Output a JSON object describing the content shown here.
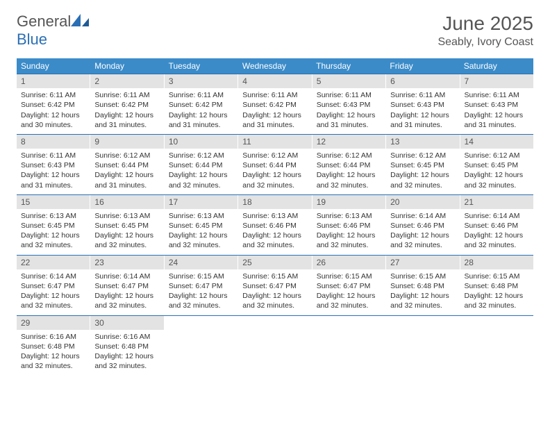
{
  "logo": {
    "text1": "General",
    "text2": "Blue"
  },
  "header": {
    "title": "June 2025",
    "location": "Seably, Ivory Coast"
  },
  "colors": {
    "header_bg": "#3b8bc9",
    "header_text": "#ffffff",
    "rule": "#2a6fb5",
    "daynum_bg": "#e3e3e3",
    "text": "#333333",
    "logo_blue": "#2a6fb5"
  },
  "typography": {
    "month_title_fontsize": 28,
    "location_fontsize": 16,
    "dow_fontsize": 12,
    "cell_fontsize": 10.5
  },
  "calendar": {
    "days_of_week": [
      "Sunday",
      "Monday",
      "Tuesday",
      "Wednesday",
      "Thursday",
      "Friday",
      "Saturday"
    ],
    "first_weekday_index": 0,
    "num_days": 30,
    "weeks": [
      [
        {
          "n": "1",
          "sunrise": "Sunrise: 6:11 AM",
          "sunset": "Sunset: 6:42 PM",
          "d1": "Daylight: 12 hours",
          "d2": "and 30 minutes."
        },
        {
          "n": "2",
          "sunrise": "Sunrise: 6:11 AM",
          "sunset": "Sunset: 6:42 PM",
          "d1": "Daylight: 12 hours",
          "d2": "and 31 minutes."
        },
        {
          "n": "3",
          "sunrise": "Sunrise: 6:11 AM",
          "sunset": "Sunset: 6:42 PM",
          "d1": "Daylight: 12 hours",
          "d2": "and 31 minutes."
        },
        {
          "n": "4",
          "sunrise": "Sunrise: 6:11 AM",
          "sunset": "Sunset: 6:42 PM",
          "d1": "Daylight: 12 hours",
          "d2": "and 31 minutes."
        },
        {
          "n": "5",
          "sunrise": "Sunrise: 6:11 AM",
          "sunset": "Sunset: 6:43 PM",
          "d1": "Daylight: 12 hours",
          "d2": "and 31 minutes."
        },
        {
          "n": "6",
          "sunrise": "Sunrise: 6:11 AM",
          "sunset": "Sunset: 6:43 PM",
          "d1": "Daylight: 12 hours",
          "d2": "and 31 minutes."
        },
        {
          "n": "7",
          "sunrise": "Sunrise: 6:11 AM",
          "sunset": "Sunset: 6:43 PM",
          "d1": "Daylight: 12 hours",
          "d2": "and 31 minutes."
        }
      ],
      [
        {
          "n": "8",
          "sunrise": "Sunrise: 6:11 AM",
          "sunset": "Sunset: 6:43 PM",
          "d1": "Daylight: 12 hours",
          "d2": "and 31 minutes."
        },
        {
          "n": "9",
          "sunrise": "Sunrise: 6:12 AM",
          "sunset": "Sunset: 6:44 PM",
          "d1": "Daylight: 12 hours",
          "d2": "and 31 minutes."
        },
        {
          "n": "10",
          "sunrise": "Sunrise: 6:12 AM",
          "sunset": "Sunset: 6:44 PM",
          "d1": "Daylight: 12 hours",
          "d2": "and 32 minutes."
        },
        {
          "n": "11",
          "sunrise": "Sunrise: 6:12 AM",
          "sunset": "Sunset: 6:44 PM",
          "d1": "Daylight: 12 hours",
          "d2": "and 32 minutes."
        },
        {
          "n": "12",
          "sunrise": "Sunrise: 6:12 AM",
          "sunset": "Sunset: 6:44 PM",
          "d1": "Daylight: 12 hours",
          "d2": "and 32 minutes."
        },
        {
          "n": "13",
          "sunrise": "Sunrise: 6:12 AM",
          "sunset": "Sunset: 6:45 PM",
          "d1": "Daylight: 12 hours",
          "d2": "and 32 minutes."
        },
        {
          "n": "14",
          "sunrise": "Sunrise: 6:12 AM",
          "sunset": "Sunset: 6:45 PM",
          "d1": "Daylight: 12 hours",
          "d2": "and 32 minutes."
        }
      ],
      [
        {
          "n": "15",
          "sunrise": "Sunrise: 6:13 AM",
          "sunset": "Sunset: 6:45 PM",
          "d1": "Daylight: 12 hours",
          "d2": "and 32 minutes."
        },
        {
          "n": "16",
          "sunrise": "Sunrise: 6:13 AM",
          "sunset": "Sunset: 6:45 PM",
          "d1": "Daylight: 12 hours",
          "d2": "and 32 minutes."
        },
        {
          "n": "17",
          "sunrise": "Sunrise: 6:13 AM",
          "sunset": "Sunset: 6:45 PM",
          "d1": "Daylight: 12 hours",
          "d2": "and 32 minutes."
        },
        {
          "n": "18",
          "sunrise": "Sunrise: 6:13 AM",
          "sunset": "Sunset: 6:46 PM",
          "d1": "Daylight: 12 hours",
          "d2": "and 32 minutes."
        },
        {
          "n": "19",
          "sunrise": "Sunrise: 6:13 AM",
          "sunset": "Sunset: 6:46 PM",
          "d1": "Daylight: 12 hours",
          "d2": "and 32 minutes."
        },
        {
          "n": "20",
          "sunrise": "Sunrise: 6:14 AM",
          "sunset": "Sunset: 6:46 PM",
          "d1": "Daylight: 12 hours",
          "d2": "and 32 minutes."
        },
        {
          "n": "21",
          "sunrise": "Sunrise: 6:14 AM",
          "sunset": "Sunset: 6:46 PM",
          "d1": "Daylight: 12 hours",
          "d2": "and 32 minutes."
        }
      ],
      [
        {
          "n": "22",
          "sunrise": "Sunrise: 6:14 AM",
          "sunset": "Sunset: 6:47 PM",
          "d1": "Daylight: 12 hours",
          "d2": "and 32 minutes."
        },
        {
          "n": "23",
          "sunrise": "Sunrise: 6:14 AM",
          "sunset": "Sunset: 6:47 PM",
          "d1": "Daylight: 12 hours",
          "d2": "and 32 minutes."
        },
        {
          "n": "24",
          "sunrise": "Sunrise: 6:15 AM",
          "sunset": "Sunset: 6:47 PM",
          "d1": "Daylight: 12 hours",
          "d2": "and 32 minutes."
        },
        {
          "n": "25",
          "sunrise": "Sunrise: 6:15 AM",
          "sunset": "Sunset: 6:47 PM",
          "d1": "Daylight: 12 hours",
          "d2": "and 32 minutes."
        },
        {
          "n": "26",
          "sunrise": "Sunrise: 6:15 AM",
          "sunset": "Sunset: 6:47 PM",
          "d1": "Daylight: 12 hours",
          "d2": "and 32 minutes."
        },
        {
          "n": "27",
          "sunrise": "Sunrise: 6:15 AM",
          "sunset": "Sunset: 6:48 PM",
          "d1": "Daylight: 12 hours",
          "d2": "and 32 minutes."
        },
        {
          "n": "28",
          "sunrise": "Sunrise: 6:15 AM",
          "sunset": "Sunset: 6:48 PM",
          "d1": "Daylight: 12 hours",
          "d2": "and 32 minutes."
        }
      ],
      [
        {
          "n": "29",
          "sunrise": "Sunrise: 6:16 AM",
          "sunset": "Sunset: 6:48 PM",
          "d1": "Daylight: 12 hours",
          "d2": "and 32 minutes."
        },
        {
          "n": "30",
          "sunrise": "Sunrise: 6:16 AM",
          "sunset": "Sunset: 6:48 PM",
          "d1": "Daylight: 12 hours",
          "d2": "and 32 minutes."
        },
        null,
        null,
        null,
        null,
        null
      ]
    ]
  }
}
